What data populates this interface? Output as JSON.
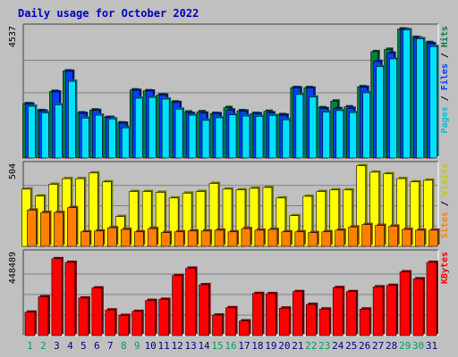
{
  "chart_data": {
    "type": "bar",
    "title": "Daily usage for October 2022",
    "x": [
      "1",
      "2",
      "3",
      "4",
      "5",
      "6",
      "7",
      "8",
      "9",
      "10",
      "11",
      "12",
      "13",
      "14",
      "15",
      "16",
      "17",
      "18",
      "19",
      "20",
      "21",
      "22",
      "23",
      "24",
      "25",
      "26",
      "27",
      "28",
      "29",
      "30",
      "31"
    ],
    "weekend_days": [
      "1",
      "2",
      "8",
      "9",
      "15",
      "16",
      "22",
      "23",
      "29",
      "30"
    ],
    "panels": [
      {
        "id": "hits-files-pages",
        "max_label": "4537",
        "ylim": [
          0,
          4537
        ],
        "legend": [
          "Pages",
          "Files",
          "Hits"
        ],
        "series": [
          {
            "name": "Hits",
            "color": "#008040",
            "values": [
              1890,
              1650,
              2320,
              3030,
              1570,
              1670,
              1410,
              1220,
              2370,
              2340,
              2200,
              1950,
              1600,
              1610,
              1550,
              1755,
              1645,
              1550,
              1625,
              1510,
              2450,
              2450,
              1750,
              1980,
              1780,
              2480,
              3700,
              3780,
              4490,
              4200,
              4020
            ]
          },
          {
            "name": "Files",
            "color": "#0040ff",
            "values": [
              1880,
              1630,
              2300,
              3020,
              1550,
              1655,
              1410,
              1210,
              2350,
              2330,
              2190,
              1930,
              1550,
              1560,
              1540,
              1670,
              1630,
              1540,
              1570,
              1490,
              2440,
              2430,
              1720,
              1720,
              1730,
              2460,
              3360,
              3650,
              4480,
              4170,
              3980
            ]
          },
          {
            "name": "Pages",
            "color": "#00e0ff",
            "values": [
              1800,
              1570,
              1850,
              2670,
              1390,
              1490,
              1360,
              1050,
              2080,
              2110,
              2050,
              1700,
              1490,
              1310,
              1400,
              1500,
              1460,
              1450,
              1480,
              1330,
              2210,
              2120,
              1600,
              1650,
              1580,
              2270,
              3180,
              3450,
              4460,
              4150,
              3880
            ]
          }
        ]
      },
      {
        "id": "visits-sites",
        "max_label": "504",
        "ylim": [
          0,
          504
        ],
        "legend": [
          "Sites",
          "Visits"
        ],
        "series": [
          {
            "name": "Visits",
            "color": "#ffff00",
            "values": [
              355,
              312,
              385,
              420,
              420,
              455,
              400,
              185,
              340,
              340,
              335,
              300,
              330,
              340,
              390,
              355,
              350,
              360,
              365,
              300,
              190,
              310,
              340,
              350,
              350,
              500,
              460,
              450,
              420,
              400,
              410
            ]
          },
          {
            "name": "Sites",
            "color": "#ff8000",
            "values": [
              225,
              210,
              210,
              240,
              90,
              95,
              115,
              105,
              90,
              110,
              85,
              90,
              95,
              95,
              100,
              90,
              110,
              100,
              105,
              90,
              90,
              85,
              90,
              100,
              120,
              135,
              130,
              125,
              105,
              100,
              100
            ]
          }
        ]
      },
      {
        "id": "kbytes",
        "max_label": "448489",
        "ylim": [
          0,
          448489
        ],
        "legend": [
          "KBytes"
        ],
        "series": [
          {
            "name": "KBytes",
            "color": "#ff0000",
            "values": [
              128000,
              212000,
              420000,
              400000,
              205000,
              260000,
              140000,
              110000,
              132000,
              192000,
              198000,
              328000,
              368000,
              278000,
              112000,
              152000,
              80000,
              230000,
              229000,
              150000,
              240000,
              170000,
              145000,
              262000,
              240000,
              145000,
              266000,
              274000,
              348000,
              310000,
              400000
            ]
          }
        ]
      }
    ],
    "xlabel": "",
    "ylabel": "",
    "grid": true
  }
}
